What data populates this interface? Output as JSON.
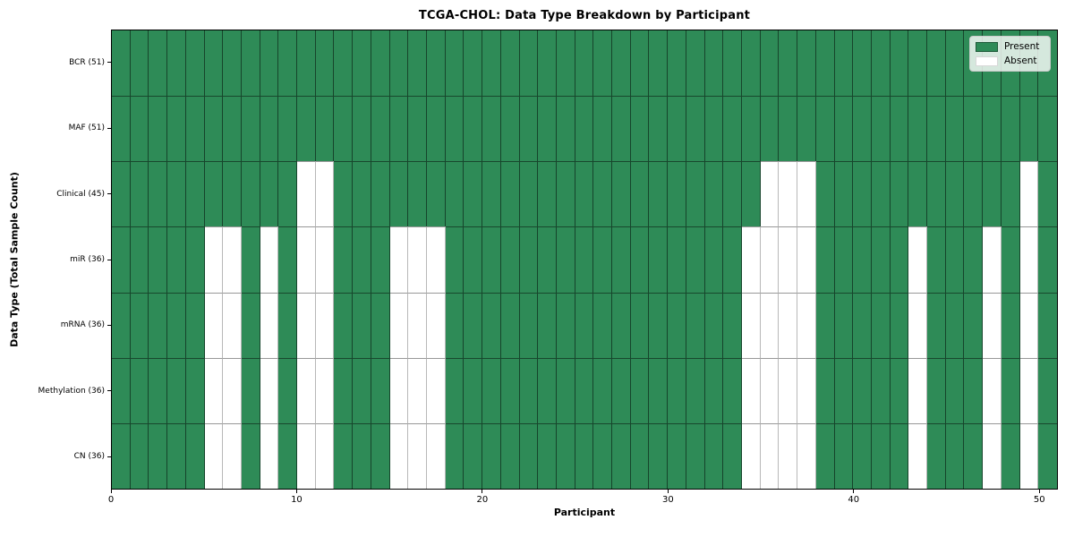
{
  "colors": {
    "present": "#2e8b57",
    "absent": "#ffffff",
    "frame": "#000000",
    "legend_border": "#cccccc"
  },
  "chart_data": {
    "type": "heatmap",
    "title": "TCGA-CHOL: Data Type Breakdown by Participant",
    "xlabel": "Participant",
    "ylabel": "Data Type (Total Sample Count)",
    "x_range": [
      0,
      51
    ],
    "x_ticks": [
      0,
      10,
      20,
      30,
      40,
      50
    ],
    "n_participants": 51,
    "grid": "cell-borders-on",
    "legend_position": "upper-right",
    "legend": [
      {
        "label": "Present",
        "color": "#2e8b57"
      },
      {
        "label": "Absent",
        "color": "#ffffff"
      }
    ],
    "rows": [
      {
        "label": "BCR (51)",
        "total_samples": 51,
        "absent_participants": []
      },
      {
        "label": "MAF (51)",
        "total_samples": 51,
        "absent_participants": []
      },
      {
        "label": "Clinical (45)",
        "total_samples": 45,
        "absent_participants": [
          10,
          11,
          35,
          36,
          37,
          49
        ]
      },
      {
        "label": "miR (36)",
        "total_samples": 36,
        "absent_participants": [
          5,
          6,
          8,
          10,
          11,
          15,
          16,
          17,
          34,
          35,
          36,
          37,
          43,
          47,
          49
        ]
      },
      {
        "label": "mRNA (36)",
        "total_samples": 36,
        "absent_participants": [
          5,
          6,
          8,
          10,
          11,
          15,
          16,
          17,
          34,
          35,
          36,
          37,
          43,
          47,
          49
        ]
      },
      {
        "label": "Methylation (36)",
        "total_samples": 36,
        "absent_participants": [
          5,
          6,
          8,
          10,
          11,
          15,
          16,
          17,
          34,
          35,
          36,
          37,
          43,
          47,
          49
        ]
      },
      {
        "label": "CN (36)",
        "total_samples": 36,
        "absent_participants": [
          5,
          6,
          8,
          10,
          11,
          15,
          16,
          17,
          34,
          35,
          36,
          37,
          43,
          47,
          49
        ]
      }
    ]
  }
}
